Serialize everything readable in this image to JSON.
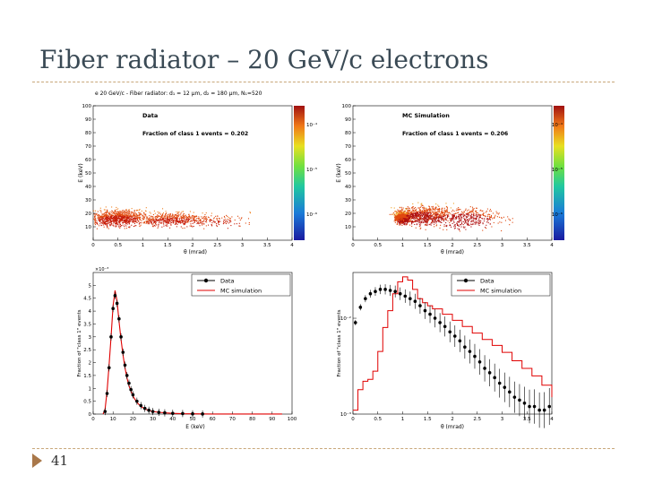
{
  "slide": {
    "title": "Fiber radiator – 20 GeV/c electrons",
    "page_number": "41"
  },
  "colors": {
    "accent_line": "#c8a77a",
    "bullet": "#a9784a",
    "data": "#000000",
    "mc": "#e00000"
  },
  "chart_data": [
    {
      "type": "heatmap",
      "id": "data-2d",
      "figure_title": "e 20 GeV/c - Fiber radiator: d₁ = 12 µm, d₂ = 180 µm, N₁=520",
      "label": "Data",
      "annotation": "Fraction of class 1 events = 0.202",
      "xlabel": "θ (mrad)",
      "ylabel": "E (keV)",
      "xlim": [
        0,
        4
      ],
      "ylim": [
        0,
        100
      ],
      "xticks": [
        "0",
        "0.5",
        "1",
        "1.5",
        "2",
        "2.5",
        "3",
        "3.5",
        "4"
      ],
      "yticks": [
        "10",
        "20",
        "30",
        "40",
        "50",
        "60",
        "70",
        "80",
        "90",
        "100"
      ],
      "zlabels": [
        "10⁻⁴",
        "10⁻⁵",
        "10⁻⁶"
      ],
      "colormap": "rainbow (log z)",
      "clusters": [
        {
          "x": 0.5,
          "y": 14,
          "sx": 0.6,
          "sy": 6,
          "weight": 900
        },
        {
          "x": 1.6,
          "y": 13,
          "sx": 0.7,
          "sy": 5,
          "weight": 500
        },
        {
          "x": 2.5,
          "y": 12,
          "sx": 0.6,
          "sy": 5,
          "weight": 120
        }
      ]
    },
    {
      "type": "heatmap",
      "id": "mc-2d",
      "label": "MC Simulation",
      "annotation": "Fraction of class 1 events = 0.206",
      "xlabel": "θ (mrad)",
      "ylabel": "E (keV)",
      "xlim": [
        0,
        4
      ],
      "ylim": [
        0,
        100
      ],
      "xticks": [
        "0",
        "0.5",
        "1",
        "1.5",
        "2",
        "2.5",
        "3",
        "3.5",
        "4"
      ],
      "yticks": [
        "10",
        "20",
        "30",
        "40",
        "50",
        "60",
        "70",
        "80",
        "90",
        "100"
      ],
      "zlabels": [
        "10⁻⁴",
        "10⁻⁵",
        "10⁻⁶"
      ],
      "colormap": "rainbow (log z)",
      "clusters": [
        {
          "x": 1.0,
          "y": 14,
          "sx": 0.15,
          "sy": 4,
          "weight": 700
        },
        {
          "x": 1.4,
          "y": 16,
          "sx": 0.5,
          "sy": 7,
          "weight": 700
        },
        {
          "x": 2.2,
          "y": 14,
          "sx": 0.8,
          "sy": 8,
          "weight": 500
        }
      ]
    },
    {
      "type": "line",
      "id": "energy-1d",
      "xlabel": "E (keV)",
      "ylabel": "Fraction of \"class 1\" events",
      "y_multiplier": "×10⁻³",
      "xlim": [
        0,
        100
      ],
      "ylim": [
        0,
        0.0055
      ],
      "xticks": [
        "0",
        "10",
        "20",
        "30",
        "40",
        "50",
        "60",
        "70",
        "80",
        "90",
        "100"
      ],
      "yticks": [
        "0",
        "0.5",
        "1",
        "1.5",
        "2",
        "2.5",
        "3",
        "3.5",
        "4",
        "4.5",
        "5"
      ],
      "legend": [
        "Data",
        "MC simulation"
      ],
      "series": [
        {
          "name": "Data",
          "x": [
            6,
            7,
            8,
            9,
            10,
            11,
            12,
            13,
            14,
            15,
            16,
            17,
            18,
            19,
            20,
            22,
            24,
            26,
            28,
            30,
            33,
            36,
            40,
            45,
            50,
            55
          ],
          "y": [
            0.0001,
            0.0008,
            0.0018,
            0.003,
            0.0041,
            0.0046,
            0.0043,
            0.0037,
            0.003,
            0.0024,
            0.0019,
            0.0015,
            0.0012,
            0.00095,
            0.00075,
            0.0005,
            0.00033,
            0.00022,
            0.00015,
            0.0001,
            7e-05,
            5e-05,
            3e-05,
            2e-05,
            1e-05,
            5e-06
          ]
        },
        {
          "name": "MC simulation",
          "x": [
            5,
            6,
            7,
            8,
            9,
            10,
            11,
            12,
            13,
            14,
            15,
            16,
            17,
            18,
            19,
            20,
            22,
            24,
            26,
            28,
            30,
            33,
            36,
            40,
            45,
            50,
            55,
            60,
            70,
            80,
            90,
            95
          ],
          "y": [
            0,
            0.0002,
            0.0009,
            0.0019,
            0.003,
            0.0042,
            0.0048,
            0.0044,
            0.0036,
            0.0029,
            0.0023,
            0.0018,
            0.0014,
            0.0011,
            0.0009,
            0.0007,
            0.00045,
            0.0003,
            0.0002,
            0.00014,
            0.0001,
            7e-05,
            5e-05,
            3e-05,
            1.5e-05,
            1e-05,
            5e-06,
            3e-06,
            2e-06,
            1e-06,
            2e-06,
            1e-06
          ]
        }
      ]
    },
    {
      "type": "line",
      "id": "theta-1d",
      "xlabel": "θ (mrad)",
      "ylabel": "Fraction of \"class 1\" events",
      "scale": "log",
      "xlim": [
        0,
        4
      ],
      "ylim": [
        0.001,
        0.03
      ],
      "xticks": [
        "0",
        "0.5",
        "1",
        "1.5",
        "2",
        "2.5",
        "3",
        "3.5",
        "4"
      ],
      "yticks": [
        "10⁻³",
        "10⁻²"
      ],
      "legend": [
        "Data",
        "MC simulation"
      ],
      "series": [
        {
          "name": "Data",
          "x": [
            0.05,
            0.15,
            0.25,
            0.35,
            0.45,
            0.55,
            0.65,
            0.75,
            0.85,
            0.95,
            1.05,
            1.15,
            1.25,
            1.35,
            1.45,
            1.55,
            1.65,
            1.75,
            1.85,
            1.95,
            2.05,
            2.15,
            2.25,
            2.35,
            2.45,
            2.55,
            2.65,
            2.75,
            2.85,
            2.95,
            3.05,
            3.15,
            3.25,
            3.35,
            3.45,
            3.55,
            3.65,
            3.75,
            3.85,
            3.95
          ],
          "y": [
            0.009,
            0.013,
            0.016,
            0.018,
            0.019,
            0.02,
            0.02,
            0.0195,
            0.019,
            0.018,
            0.017,
            0.016,
            0.015,
            0.0135,
            0.012,
            0.011,
            0.01,
            0.009,
            0.0082,
            0.0072,
            0.0065,
            0.0058,
            0.005,
            0.0045,
            0.004,
            0.0035,
            0.003,
            0.0027,
            0.0024,
            0.0021,
            0.0019,
            0.0017,
            0.0015,
            0.0014,
            0.0013,
            0.0012,
            0.0012,
            0.0011,
            0.0011,
            0.0012
          ]
        },
        {
          "name": "MC simulation",
          "x": [
            0.0,
            0.1,
            0.2,
            0.3,
            0.4,
            0.5,
            0.6,
            0.7,
            0.8,
            0.9,
            1.0,
            1.1,
            1.2,
            1.3,
            1.4,
            1.5,
            1.6,
            1.8,
            2.0,
            2.2,
            2.4,
            2.6,
            2.8,
            3.0,
            3.2,
            3.4,
            3.6,
            3.8,
            4.0
          ],
          "y": [
            0.0011,
            0.0018,
            0.0022,
            0.0023,
            0.0028,
            0.0045,
            0.008,
            0.012,
            0.018,
            0.024,
            0.027,
            0.025,
            0.02,
            0.016,
            0.0145,
            0.0135,
            0.0125,
            0.011,
            0.0095,
            0.0082,
            0.007,
            0.006,
            0.0052,
            0.0044,
            0.0036,
            0.003,
            0.0025,
            0.002,
            0.0015
          ]
        }
      ]
    }
  ]
}
